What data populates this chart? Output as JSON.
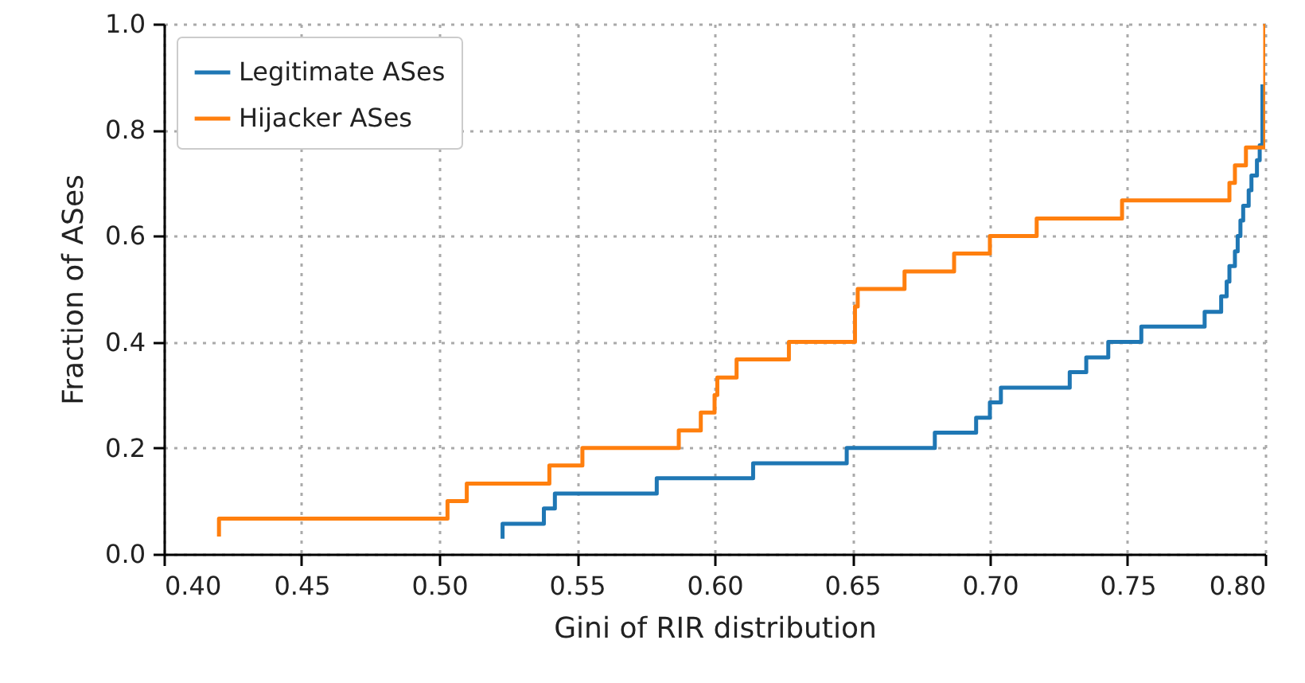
{
  "chart_data": {
    "type": "step",
    "xlabel": "Gini of RIR distribution",
    "ylabel": "Fraction of ASes",
    "xlim": [
      0.4,
      0.8
    ],
    "ylim": [
      0,
      1
    ],
    "xticks": [
      {
        "value": 0.4,
        "label": "0.40"
      },
      0.45,
      {
        "value": 0.5,
        "label": "0.50"
      },
      0.55,
      {
        "value": 0.6,
        "label": "0.60"
      },
      0.65,
      {
        "value": 0.7,
        "label": "0.70"
      },
      0.75,
      {
        "value": 0.8,
        "label": "0.80"
      }
    ],
    "yticks": [
      {
        "value": 0,
        "label": "0.0"
      },
      0.2,
      0.4,
      0.6,
      0.8,
      {
        "value": 1,
        "label": "1.0"
      }
    ],
    "grid": true,
    "legend": "top left",
    "series": [
      {
        "name": "Legitimate ASes",
        "color": "#1f77b4",
        "x": [
          0.523,
          0.523,
          0.538,
          0.542,
          0.579,
          0.614,
          0.648,
          0.68,
          0.695,
          0.7,
          0.704,
          0.729,
          0.735,
          0.743,
          0.755,
          0.778,
          0.784,
          0.786,
          0.787,
          0.789,
          0.79,
          0.791,
          0.792,
          0.794,
          0.795,
          0.797,
          0.798,
          0.799
        ],
        "values": [
          0.029,
          0.057,
          0.086,
          0.114,
          0.143,
          0.171,
          0.2,
          0.229,
          0.257,
          0.286,
          0.314,
          0.343,
          0.371,
          0.4,
          0.429,
          0.457,
          0.486,
          0.514,
          0.543,
          0.571,
          0.6,
          0.629,
          0.657,
          0.686,
          0.714,
          0.743,
          0.771,
          0.886
        ]
      },
      {
        "name": "Hijacker ASes",
        "color": "#ff7f0e",
        "x": [
          0.42,
          0.42,
          0.503,
          0.51,
          0.54,
          0.552,
          0.587,
          0.595,
          0.6,
          0.601,
          0.608,
          0.627,
          0.651,
          0.651,
          0.652,
          0.669,
          0.687,
          0.7,
          0.717,
          0.748,
          0.787,
          0.789,
          0.793,
          0.8
        ],
        "values": [
          0.033,
          0.067,
          0.1,
          0.133,
          0.167,
          0.2,
          0.233,
          0.267,
          0.3,
          0.333,
          0.367,
          0.4,
          0.433,
          0.467,
          0.5,
          0.533,
          0.567,
          0.6,
          0.633,
          0.667,
          0.7,
          0.733,
          0.767,
          1.0
        ]
      }
    ]
  }
}
